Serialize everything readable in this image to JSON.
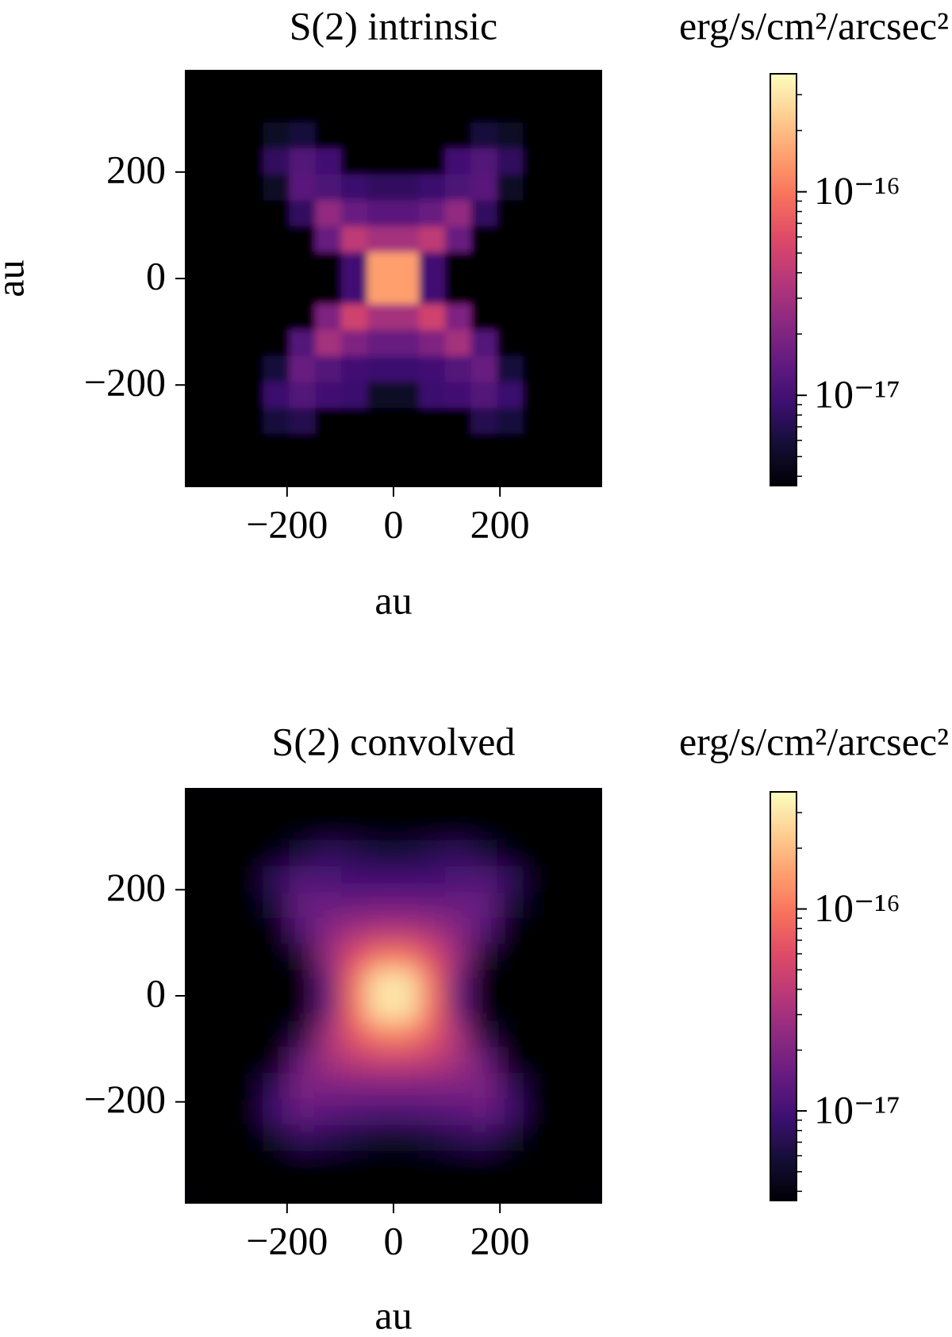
{
  "chart_data": [
    {
      "type": "heatmap",
      "title": "S(2) intrinsic",
      "xlabel": "au",
      "ylabel": "au",
      "xlim": [
        -392,
        392
      ],
      "ylim": [
        -392,
        392
      ],
      "xticks": [
        {
          "value": -200,
          "label": "−200"
        },
        0,
        200
      ],
      "yticks": [
        {
          "value": -200,
          "label": "−200"
        },
        0,
        200
      ],
      "cmap": "magma",
      "cscale": "log",
      "clim": [
        3.6e-18,
        3.8e-16
      ],
      "colorbar_label": "erg/s/cm²/arcsec²",
      "cticks": [
        {
          "value": 1e-17,
          "label": "10⁻¹⁷"
        },
        {
          "value": 1e-16,
          "label": "10⁻¹⁶"
        }
      ],
      "cminor_ticks": [
        4e-18,
        5e-18,
        6e-18,
        7e-18,
        8e-18,
        9e-18,
        2e-17,
        3e-17,
        4e-17,
        5e-17,
        6e-17,
        7e-17,
        8e-17,
        9e-17,
        2e-16,
        3e-16
      ],
      "x": [
        -365.625,
        -316.875,
        -268.125,
        -219.375,
        -170.625,
        -121.875,
        -73.125,
        -24.375,
        24.375,
        73.125,
        121.875,
        170.625,
        219.375,
        268.125,
        316.875,
        365.625
      ],
      "y": [
        365.625,
        316.875,
        268.125,
        219.375,
        170.625,
        121.875,
        73.125,
        24.375,
        -24.375,
        -73.125,
        -121.875,
        -170.625,
        -219.375,
        -268.125,
        -316.875,
        -365.625
      ],
      "z": [
        [
          3e-18,
          3e-18,
          3e-18,
          3e-18,
          3e-18,
          3e-18,
          3e-18,
          3e-18,
          3e-18,
          3e-18,
          3e-18,
          3e-18,
          3e-18,
          3e-18,
          3e-18,
          3e-18
        ],
        [
          3e-18,
          3e-18,
          3e-18,
          3e-18,
          3e-18,
          3e-18,
          3e-18,
          3e-18,
          3e-18,
          3e-18,
          3e-18,
          3e-18,
          3e-18,
          3e-18,
          3e-18,
          3e-18
        ],
        [
          3e-18,
          3e-18,
          3e-18,
          5e-18,
          6e-18,
          3e-18,
          3e-18,
          3e-18,
          3e-18,
          3e-18,
          3e-18,
          6e-18,
          5e-18,
          3e-18,
          3e-18,
          3e-18
        ],
        [
          3e-18,
          3e-18,
          3e-18,
          8e-18,
          1.2e-17,
          1e-17,
          3e-18,
          3e-18,
          3e-18,
          3e-18,
          1e-17,
          1.2e-17,
          8e-18,
          3e-18,
          3e-18,
          3e-18
        ],
        [
          3e-18,
          3e-18,
          3e-18,
          5e-18,
          1.3e-17,
          1.1e-17,
          9e-18,
          8e-18,
          8e-18,
          9e-18,
          1.1e-17,
          1.3e-17,
          5e-18,
          3e-18,
          3e-18,
          3e-18
        ],
        [
          3e-18,
          3e-18,
          3e-18,
          3e-18,
          8e-18,
          2.5e-17,
          1.5e-17,
          1.3e-17,
          1.3e-17,
          1.5e-17,
          2.5e-17,
          8e-18,
          3e-18,
          3e-18,
          3e-18,
          3e-18
        ],
        [
          3e-18,
          3e-18,
          3e-18,
          3e-18,
          3e-18,
          1.5e-17,
          4e-17,
          3e-17,
          3e-17,
          4e-17,
          1.5e-17,
          3e-18,
          3e-18,
          3e-18,
          3e-18,
          3e-18
        ],
        [
          3e-18,
          3e-18,
          3e-18,
          3e-18,
          3e-18,
          3e-18,
          1e-17,
          1.5e-16,
          1.5e-16,
          1e-17,
          3e-18,
          3e-18,
          3e-18,
          3e-18,
          3e-18,
          3e-18
        ],
        [
          3e-18,
          3e-18,
          3e-18,
          3e-18,
          3e-18,
          3e-18,
          1e-17,
          1.5e-16,
          1.5e-16,
          1e-17,
          3e-18,
          3e-18,
          3e-18,
          3e-18,
          3e-18,
          3e-18
        ],
        [
          3e-18,
          3e-18,
          3e-18,
          3e-18,
          3e-18,
          2e-17,
          5e-17,
          3e-17,
          3e-17,
          5e-17,
          2e-17,
          3e-18,
          3e-18,
          3e-18,
          3e-18,
          3e-18
        ],
        [
          3e-18,
          3e-18,
          3e-18,
          3e-18,
          1.2e-17,
          3e-17,
          2e-17,
          1.5e-17,
          1.5e-17,
          2e-17,
          3e-17,
          1.2e-17,
          3e-18,
          3e-18,
          3e-18,
          3e-18
        ],
        [
          3e-18,
          3e-18,
          3e-18,
          6e-18,
          1.5e-17,
          1.2e-17,
          1e-17,
          9e-18,
          9e-18,
          1e-17,
          1.2e-17,
          1.5e-17,
          6e-18,
          3e-18,
          3e-18,
          3e-18
        ],
        [
          3e-18,
          3e-18,
          3e-18,
          9e-18,
          1.2e-17,
          1e-17,
          9e-18,
          5e-18,
          5e-18,
          9e-18,
          1e-17,
          1.2e-17,
          9e-18,
          3e-18,
          3e-18,
          3e-18
        ],
        [
          3e-18,
          3e-18,
          3e-18,
          6e-18,
          7e-18,
          3e-18,
          3e-18,
          3e-18,
          3e-18,
          3e-18,
          3e-18,
          7e-18,
          6e-18,
          3e-18,
          3e-18,
          3e-18
        ],
        [
          3e-18,
          3e-18,
          3e-18,
          3e-18,
          3e-18,
          3e-18,
          3e-18,
          3e-18,
          3e-18,
          3e-18,
          3e-18,
          3e-18,
          3e-18,
          3e-18,
          3e-18,
          3e-18
        ],
        [
          3e-18,
          3e-18,
          3e-18,
          3e-18,
          3e-18,
          3e-18,
          3e-18,
          3e-18,
          3e-18,
          3e-18,
          3e-18,
          3e-18,
          3e-18,
          3e-18,
          3e-18,
          3e-18
        ]
      ]
    },
    {
      "type": "heatmap",
      "title": "S(2) convolved",
      "xlabel": "au",
      "xlim": [
        -392,
        392
      ],
      "ylim": [
        -392,
        392
      ],
      "xticks": [
        {
          "value": -200,
          "label": "−200"
        },
        0,
        200
      ],
      "yticks": [
        {
          "value": -200,
          "label": "−200"
        },
        0,
        200
      ],
      "cmap": "magma",
      "cscale": "log",
      "clim": [
        3.6e-18,
        3.8e-16
      ],
      "colorbar_label": "erg/s/cm²/arcsec²",
      "cticks": [
        {
          "value": 1e-17,
          "label": "10⁻¹⁷"
        },
        {
          "value": 1e-16,
          "label": "10⁻¹⁶"
        }
      ],
      "cminor_ticks": [
        4e-18,
        5e-18,
        6e-18,
        7e-18,
        8e-18,
        9e-18,
        2e-17,
        3e-17,
        4e-17,
        5e-17,
        6e-17,
        7e-17,
        8e-17,
        9e-17,
        2e-16,
        3e-16
      ],
      "x": [
        -365.625,
        -316.875,
        -268.125,
        -219.375,
        -170.625,
        -121.875,
        -73.125,
        -24.375,
        24.375,
        73.125,
        121.875,
        170.625,
        219.375,
        268.125,
        316.875,
        365.625
      ],
      "y": [
        365.625,
        316.875,
        268.125,
        219.375,
        170.625,
        121.875,
        73.125,
        24.375,
        -24.375,
        -73.125,
        -121.875,
        -170.625,
        -219.375,
        -268.125,
        -316.875,
        -365.625
      ],
      "z": [
        [
          3e-18,
          3e-18,
          3e-18,
          3e-18,
          3e-18,
          3e-18,
          3e-18,
          3e-18,
          3e-18,
          3e-18,
          3e-18,
          3e-18,
          3e-18,
          3e-18,
          3e-18,
          3e-18
        ],
        [
          3e-18,
          3e-18,
          3e-18,
          3e-18,
          3e-18,
          3e-18,
          3e-18,
          3e-18,
          3e-18,
          3e-18,
          3e-18,
          3e-18,
          3e-18,
          3e-18,
          3e-18,
          3e-18
        ],
        [
          3e-18,
          3e-18,
          3e-18,
          4e-18,
          6e-18,
          8e-18,
          7e-18,
          6e-18,
          6e-18,
          7e-18,
          8e-18,
          6e-18,
          4e-18,
          3e-18,
          3e-18,
          3e-18
        ],
        [
          3e-18,
          3e-18,
          3e-18,
          8e-18,
          1.2e-17,
          1.1e-17,
          1e-17,
          1e-17,
          1e-17,
          1e-17,
          1.1e-17,
          1.2e-17,
          8e-18,
          3e-18,
          3e-18,
          3e-18
        ],
        [
          3e-18,
          3e-18,
          3e-18,
          6e-18,
          1.5e-17,
          1.6e-17,
          1.6e-17,
          1.7e-17,
          1.7e-17,
          1.6e-17,
          1.6e-17,
          1.5e-17,
          6e-18,
          3e-18,
          3e-18,
          3e-18
        ],
        [
          3e-18,
          3e-18,
          3e-18,
          3e-18,
          1.2e-17,
          2.2e-17,
          3e-17,
          3.5e-17,
          3.5e-17,
          3e-17,
          2.2e-17,
          1.2e-17,
          3e-18,
          3e-18,
          3e-18,
          3e-18
        ],
        [
          3e-18,
          3e-18,
          3e-18,
          3e-18,
          5e-18,
          2.5e-17,
          6e-17,
          1e-16,
          1e-16,
          6e-17,
          2.5e-17,
          5e-18,
          3e-18,
          3e-18,
          3e-18,
          3e-18
        ],
        [
          3e-18,
          3e-18,
          3e-18,
          3e-18,
          3e-18,
          1.5e-17,
          9e-17,
          3e-16,
          3e-16,
          9e-17,
          1.5e-17,
          3e-18,
          3e-18,
          3e-18,
          3e-18,
          3e-18
        ],
        [
          3e-18,
          3e-18,
          3e-18,
          3e-18,
          3e-18,
          1.5e-17,
          9e-17,
          3e-16,
          3e-16,
          9e-17,
          1.5e-17,
          3e-18,
          3e-18,
          3e-18,
          3e-18,
          3e-18
        ],
        [
          3e-18,
          3e-18,
          3e-18,
          3e-18,
          6e-18,
          3e-17,
          7e-17,
          1.1e-16,
          1.1e-16,
          7e-17,
          3e-17,
          6e-18,
          3e-18,
          3e-18,
          3e-18,
          3e-18
        ],
        [
          3e-18,
          3e-18,
          3e-18,
          3e-18,
          1.5e-17,
          3e-17,
          4e-17,
          4.5e-17,
          4.5e-17,
          4e-17,
          3e-17,
          1.5e-17,
          3e-18,
          3e-18,
          3e-18,
          3e-18
        ],
        [
          3e-18,
          3e-18,
          3e-18,
          8e-18,
          2e-17,
          2e-17,
          2e-17,
          2e-17,
          2e-17,
          2e-17,
          2e-17,
          2e-17,
          8e-18,
          3e-18,
          3e-18,
          3e-18
        ],
        [
          3e-18,
          3e-18,
          3e-18,
          1e-17,
          1.5e-17,
          1.3e-17,
          1.2e-17,
          1.1e-17,
          1.1e-17,
          1.2e-17,
          1.3e-17,
          1.5e-17,
          1e-17,
          3e-18,
          3e-18,
          3e-18
        ],
        [
          3e-18,
          3e-18,
          3e-18,
          5e-18,
          8e-18,
          7e-18,
          6e-18,
          5e-18,
          5e-18,
          6e-18,
          7e-18,
          8e-18,
          5e-18,
          3e-18,
          3e-18,
          3e-18
        ],
        [
          3e-18,
          3e-18,
          3e-18,
          3e-18,
          3e-18,
          3e-18,
          3e-18,
          3e-18,
          3e-18,
          3e-18,
          3e-18,
          3e-18,
          3e-18,
          3e-18,
          3e-18,
          3e-18
        ],
        [
          3e-18,
          3e-18,
          3e-18,
          3e-18,
          3e-18,
          3e-18,
          3e-18,
          3e-18,
          3e-18,
          3e-18,
          3e-18,
          3e-18,
          3e-18,
          3e-18,
          3e-18,
          3e-18
        ]
      ]
    }
  ]
}
